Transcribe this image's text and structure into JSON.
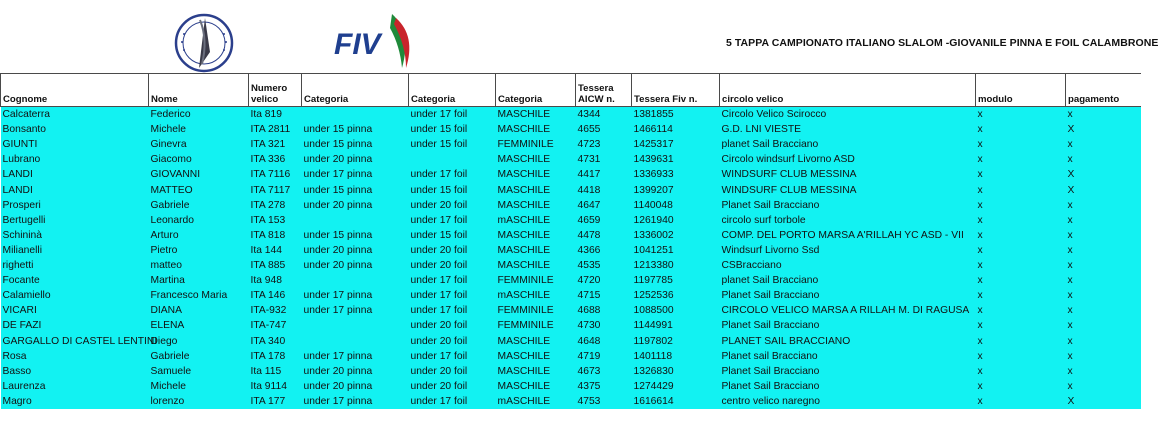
{
  "header": {
    "title": "5 TAPPA CAMPIONATO ITALIANO SLALOM -GIOVANILE PINNA E FOIL CALAMBRONE",
    "fiv_logo_text": "FIV"
  },
  "colors": {
    "row_bg": "#12f2f2",
    "fiv_blue": "#1f3f8f",
    "fiv_red": "#c8242b",
    "fiv_green": "#1f8a3a"
  },
  "table": {
    "columns": [
      {
        "label": "Cognome"
      },
      {
        "label": "Nome"
      },
      {
        "label_line1": "Numero",
        "label_line2": "velico"
      },
      {
        "label": "Categoria"
      },
      {
        "label": "Categoria"
      },
      {
        "label": "Categoria"
      },
      {
        "label_line1": "Tessera",
        "label_line2": "AICW n."
      },
      {
        "label": "Tessera Fiv n."
      },
      {
        "label": "circolo velico"
      },
      {
        "label": "modulo"
      },
      {
        "label": "pagamento"
      }
    ],
    "rows": [
      [
        "Calcaterra",
        "Federico",
        "Ita 819",
        "",
        "under 17 foil",
        "MASCHILE",
        "4344",
        "1381855",
        "Circolo Velico Scirocco",
        "x",
        "x"
      ],
      [
        "Bonsanto",
        "Michele",
        "ITA 2811",
        "under 15 pinna",
        "under 15 foil",
        "MASCHILE",
        "4655",
        "1466114",
        "G.D. LNI VIESTE",
        "x",
        "X"
      ],
      [
        "GIUNTI",
        "Ginevra",
        "ITA 321",
        "under 15 pinna",
        "under 15 foil",
        "FEMMINILE",
        "4723",
        "1425317",
        "planet Sail Bracciano",
        "x",
        "x"
      ],
      [
        "Lubrano",
        "Giacomo",
        "ITA 336",
        "under 20 pinna",
        "",
        "MASCHILE",
        "4731",
        "1439631",
        "Circolo windsurf Livorno ASD",
        "x",
        "x"
      ],
      [
        "LANDI",
        "GIOVANNI",
        "ITA 7116",
        "under 17  pinna",
        "under 17 foil",
        "MASCHILE",
        "4417",
        "1336933",
        "WINDSURF CLUB MESSINA",
        "x",
        "X"
      ],
      [
        "LANDI",
        "MATTEO",
        "ITA 7117",
        "under 15 pinna",
        "under 15 foil",
        "MASCHILE",
        "4418",
        "1399207",
        "WINDSURF CLUB MESSINA",
        "x",
        "X"
      ],
      [
        "Prosperi",
        "Gabriele",
        "ITA 278",
        "under 20 pinna",
        "under 20 foil",
        "MASCHILE",
        "4647",
        "1140048",
        "Planet Sail Bracciano",
        "x",
        "x"
      ],
      [
        "Bertugelli",
        "Leonardo",
        "ITA 153",
        "",
        "under 17 foil",
        "mASCHILE",
        "4659",
        "1261940",
        "circolo surf torbole",
        "x",
        "x"
      ],
      [
        "Schininà",
        "Arturo",
        "ITA 818",
        "under 15 pinna",
        "under 15 foil",
        "MASCHILE",
        "4478",
        "1336002",
        "COMP. DEL PORTO MARSA A'RILLAH YC ASD - VII",
        "x",
        "x"
      ],
      [
        "Milianelli",
        "Pietro",
        "Ita 144",
        "under 20 pinna",
        "under 20 foil",
        "MASCHILE",
        "4366",
        "1041251",
        "Windsurf Livorno Ssd",
        "x",
        "x"
      ],
      [
        "righetti",
        "matteo",
        "ITA 885",
        "under 20 pinna",
        "under 20 foil",
        "MASCHILE",
        "4535",
        "1213380",
        "CSBracciano",
        "x",
        "x"
      ],
      [
        "Focante",
        "Martina",
        "Ita 948",
        "",
        "under 17 foil",
        "FEMMINILE",
        "4720",
        "1197785",
        "planet Sail Bracciano",
        "x",
        "x"
      ],
      [
        "Calamiello",
        "Francesco Maria",
        "ITA 146",
        "under 17  pinna",
        "under 17 foil",
        "mASCHILE",
        "4715",
        "1252536",
        "Planet Sail Bracciano",
        "x",
        "x"
      ],
      [
        "VICARI",
        "DIANA",
        "ITA-932",
        "under 17  pinna",
        "under 17 foil",
        "FEMMINILE",
        "4688",
        "1088500",
        "CIRCOLO VELICO MARSA A RILLAH M. DI RAGUSA",
        "x",
        "x"
      ],
      [
        "DE FAZI",
        "ELENA",
        "ITA-747",
        "",
        "under 20 foil",
        "FEMMINILE",
        "4730",
        "1144991",
        "Planet Sail Bracciano",
        "x",
        "x"
      ],
      [
        "GARGALLO DI CASTEL LENTINI",
        "Diego",
        "ITA 340",
        "",
        "under 20 foil",
        "MASCHILE",
        "4648",
        "1197802",
        "PLANET SAIL BRACCIANO",
        "x",
        "x"
      ],
      [
        "Rosa",
        "Gabriele",
        "ITA 178",
        "under 17  pinna",
        "under 17 foil",
        "MASCHILE",
        "4719",
        "1401118",
        "Planet sail Bracciano",
        "x",
        "x"
      ],
      [
        "Basso",
        "Samuele",
        "Ita 115",
        "under 20 pinna",
        "under 20 foil",
        "MASCHILE",
        "4673",
        "1326830",
        "Planet Sail Bracciano",
        "x",
        "x"
      ],
      [
        "Laurenza",
        "Michele",
        "Ita 9114",
        "under 20 pinna",
        "under 20 foil",
        "MASCHILE",
        "4375",
        "1274429",
        "Planet Sail Bracciano",
        "x",
        "x"
      ],
      [
        "Magro",
        "lorenzo",
        "ITA 177",
        "under 17  pinna",
        "under 17 foil",
        "mASCHILE",
        "4753",
        "1616614",
        "centro velico naregno",
        "x",
        "X"
      ]
    ]
  }
}
